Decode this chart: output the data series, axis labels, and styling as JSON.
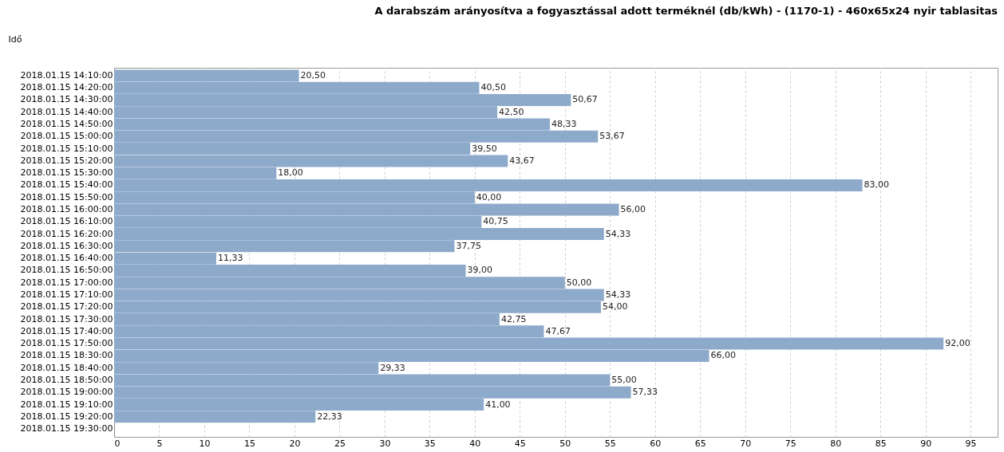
{
  "chart_data": {
    "type": "bar",
    "orientation": "horizontal",
    "title": "A darabszám arányosítva a fogyasztással adott terméknél (db/kWh) - (1170-1) - 460x65x24 nyir tablasitas",
    "ylabel": "Idő",
    "categories": [
      "2018.01.15 14:10:00",
      "2018.01.15 14:20:00",
      "2018.01.15 14:30:00",
      "2018.01.15 14:40:00",
      "2018.01.15 14:50:00",
      "2018.01.15 15:00:00",
      "2018.01.15 15:10:00",
      "2018.01.15 15:20:00",
      "2018.01.15 15:30:00",
      "2018.01.15 15:40:00",
      "2018.01.15 15:50:00",
      "2018.01.15 16:00:00",
      "2018.01.15 16:10:00",
      "2018.01.15 16:20:00",
      "2018.01.15 16:30:00",
      "2018.01.15 16:40:00",
      "2018.01.15 16:50:00",
      "2018.01.15 17:00:00",
      "2018.01.15 17:10:00",
      "2018.01.15 17:20:00",
      "2018.01.15 17:30:00",
      "2018.01.15 17:40:00",
      "2018.01.15 17:50:00",
      "2018.01.15 18:30:00",
      "2018.01.15 18:40:00",
      "2018.01.15 18:50:00",
      "2018.01.15 19:00:00",
      "2018.01.15 19:10:00",
      "2018.01.15 19:20:00",
      "2018.01.15 19:30:00"
    ],
    "values": [
      20.5,
      40.5,
      50.67,
      42.5,
      48.33,
      53.67,
      39.5,
      43.67,
      18.0,
      83.0,
      40.0,
      56.0,
      40.75,
      54.33,
      37.75,
      11.33,
      39.0,
      50.0,
      54.33,
      54.0,
      42.75,
      47.67,
      92.0,
      66.0,
      29.33,
      55.0,
      57.33,
      41.0,
      22.33,
      null
    ],
    "value_labels": [
      "20,50",
      "40,50",
      "50,67",
      "42,50",
      "48,33",
      "53,67",
      "39,50",
      "43,67",
      "18,00",
      "83,00",
      "40,00",
      "56,00",
      "40,75",
      "54,33",
      "37,75",
      "11,33",
      "39,00",
      "50,00",
      "54,33",
      "54,00",
      "42,75",
      "47,67",
      "92,00",
      "66,00",
      "29,33",
      "55,00",
      "57,33",
      "41,00",
      "22,33",
      null
    ],
    "color": "#8eaacb",
    "xlim": [
      0,
      98
    ],
    "xticks": [
      0,
      5,
      10,
      15,
      20,
      25,
      30,
      35,
      40,
      45,
      50,
      55,
      60,
      65,
      70,
      75,
      80,
      85,
      90,
      95
    ],
    "grid": "x"
  }
}
